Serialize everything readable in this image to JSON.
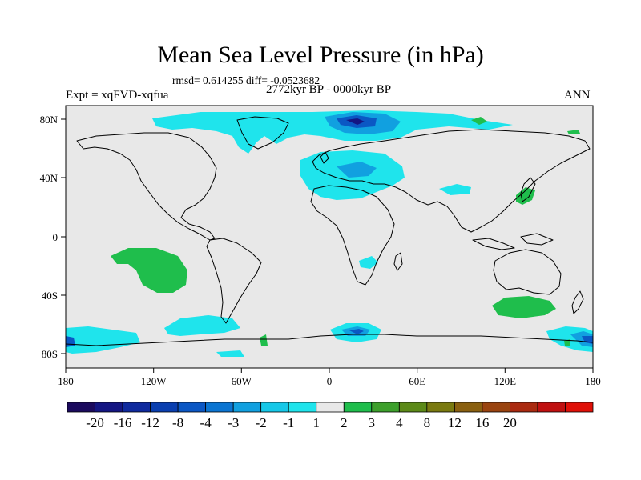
{
  "title": "Mean Sea Level Pressure (in hPa)",
  "stats_line": "rmsd= 0.614255 diff= -0.0523682",
  "subtitle": "2772kyr BP - 0000kyr BP",
  "experiment": "Expt = xqFVD-xqfua",
  "season": "ANN",
  "x_ticks": [
    "180",
    "120W",
    "60W",
    "0",
    "60E",
    "120E",
    "180"
  ],
  "y_ticks": [
    "80N",
    "40N",
    "0",
    "40S",
    "80S"
  ],
  "colorbar": {
    "colors": [
      "#1b0a5e",
      "#141683",
      "#0f2a9e",
      "#0a3fb0",
      "#0b57c4",
      "#0b75d2",
      "#11a0e0",
      "#16c8e8",
      "#1fe4ec",
      "#e8e8e8",
      "#1fbe4c",
      "#3da02c",
      "#5c8a18",
      "#7a7a10",
      "#8a6010",
      "#9a4410",
      "#aa2a10",
      "#c01010",
      "#e01008"
    ],
    "labels": [
      "-20",
      "-16",
      "-12",
      "-8",
      "-4",
      "-3",
      "-2",
      "-1",
      "1",
      "2",
      "3",
      "4",
      "8",
      "12",
      "16",
      "20"
    ]
  },
  "colors": {
    "ocean_background": "#e8e8e8",
    "light_negative": "#1fe4ec",
    "mid_negative": "#11a0e0",
    "strong_negative": "#0b57c4",
    "light_positive": "#1fbe4c",
    "coastline": "#000000"
  }
}
